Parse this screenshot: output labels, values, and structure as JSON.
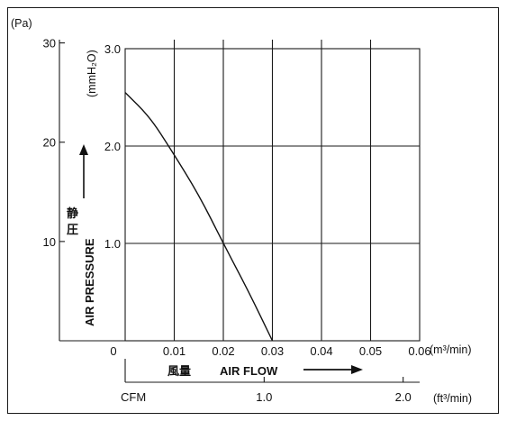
{
  "chart_data": {
    "type": "line",
    "series": [
      {
        "x": [
          0,
          0.005,
          0.0095,
          0.015,
          0.02,
          0.025,
          0.03
        ],
        "y": [
          2.55,
          2.3,
          1.95,
          1.5,
          1.0,
          0.52,
          0.0
        ]
      }
    ],
    "x_primary": {
      "unit": "(m³/min)",
      "range": [
        0,
        0.06
      ],
      "ticks": [
        "0",
        "0.01",
        "0.02",
        "0.03",
        "0.04",
        "0.05",
        "0.06"
      ],
      "label_jp": "風量",
      "label": "AIR FLOW"
    },
    "x_secondary": {
      "unit": "(ft³/min)",
      "prefix": "CFM",
      "ticks": [
        "1.0",
        "2.0"
      ],
      "tick_values": [
        1.0,
        2.0
      ]
    },
    "y_primary": {
      "unit": "(mmH₂O)",
      "range": [
        0,
        3.0
      ],
      "ticks": [
        "1.0",
        "2.0",
        "3.0"
      ],
      "label_jp": [
        "静",
        "圧"
      ],
      "label": "AIR PRESSURE"
    },
    "y_secondary": {
      "unit": "(Pa)",
      "ticks": [
        "10",
        "20",
        "30"
      ],
      "tick_values": [
        10,
        20,
        30
      ]
    },
    "grid": true
  }
}
